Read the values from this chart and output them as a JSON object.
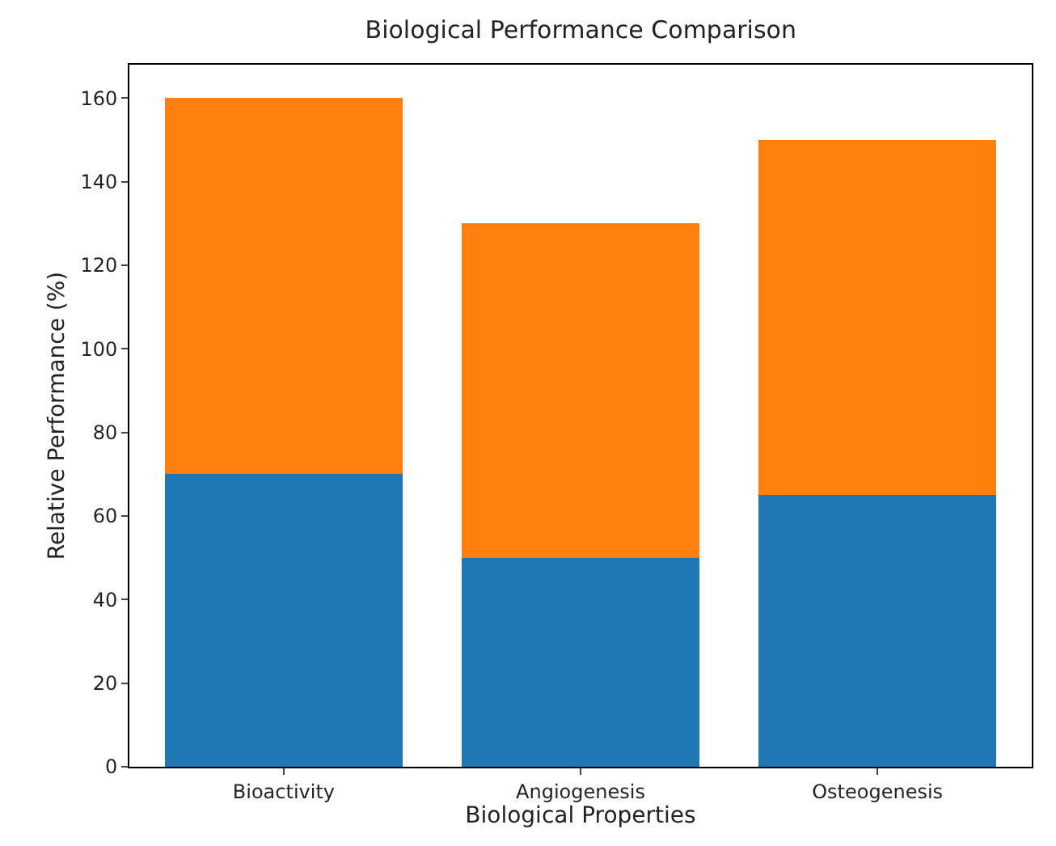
{
  "chart_data": {
    "type": "bar",
    "title": "Biological Performance Comparison",
    "xlabel": "Biological Properties",
    "ylabel": "Relative Performance (%)",
    "categories": [
      "Bioactivity",
      "Angiogenesis",
      "Osteogenesis"
    ],
    "stacked": true,
    "series": [
      {
        "color": "#1f77b4",
        "values": [
          70,
          50,
          65
        ]
      },
      {
        "color": "#ff7f0e",
        "values": [
          90,
          80,
          85
        ]
      }
    ],
    "ylim": [
      0,
      168
    ],
    "yticks": [
      0,
      20,
      40,
      60,
      80,
      100,
      120,
      140,
      160
    ]
  }
}
